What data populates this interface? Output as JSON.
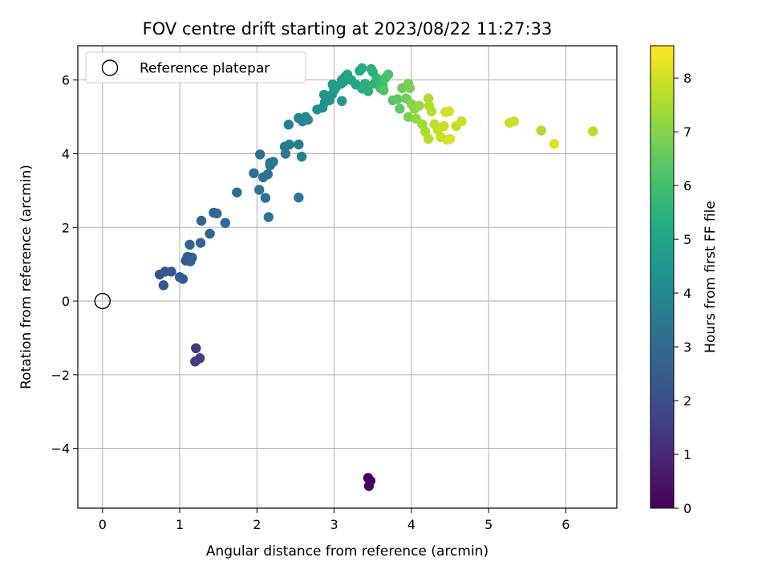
{
  "chart_data": {
    "type": "scatter",
    "title": "FOV centre drift starting at 2023/08/22 11:27:33",
    "xlabel": "Angular distance from reference (arcmin)",
    "ylabel": "Rotation from reference (arcmin)",
    "xlim": [
      -0.32,
      6.66
    ],
    "ylim": [
      -5.62,
      6.93
    ],
    "grid": true,
    "x_ticks": [
      0,
      1,
      2,
      3,
      4,
      5,
      6
    ],
    "y_ticks": [
      -4,
      -2,
      0,
      2,
      4,
      6
    ],
    "x_tick_labels": [
      "0",
      "1",
      "2",
      "3",
      "4",
      "5",
      "6"
    ],
    "y_tick_labels": [
      "−4",
      "−2",
      "0",
      "2",
      "4",
      "6"
    ],
    "legend": {
      "placement": "top-left",
      "entries": [
        {
          "label": "Reference platepar",
          "marker": "open-circle"
        }
      ]
    },
    "reference_point": {
      "x": 0,
      "y": 0
    },
    "colorbar": {
      "label": "Hours from first FF file",
      "colormap": "viridis",
      "range": [
        0,
        8.6
      ],
      "ticks": [
        0,
        1,
        2,
        3,
        4,
        5,
        6,
        7,
        8
      ],
      "tick_labels": [
        "0",
        "1",
        "2",
        "3",
        "4",
        "5",
        "6",
        "7",
        "8"
      ]
    },
    "series": [
      {
        "points": [
          {
            "x": 3.44,
            "y": -4.8,
            "c": 0.05
          },
          {
            "x": 3.47,
            "y": -4.88,
            "c": 0.1
          },
          {
            "x": 3.45,
            "y": -5.02,
            "c": 0.15
          },
          {
            "x": 1.21,
            "y": -1.28,
            "c": 1.45
          },
          {
            "x": 1.26,
            "y": -1.55,
            "c": 1.55
          },
          {
            "x": 1.2,
            "y": -1.64,
            "c": 1.5
          },
          {
            "x": 0.74,
            "y": 0.72,
            "c": 2.2
          },
          {
            "x": 0.81,
            "y": 0.8,
            "c": 2.25
          },
          {
            "x": 0.79,
            "y": 0.43,
            "c": 2.3
          },
          {
            "x": 0.89,
            "y": 0.8,
            "c": 2.35
          },
          {
            "x": 1.0,
            "y": 0.65,
            "c": 2.4
          },
          {
            "x": 1.04,
            "y": 0.6,
            "c": 2.45
          },
          {
            "x": 1.08,
            "y": 1.1,
            "c": 2.5
          },
          {
            "x": 1.1,
            "y": 1.2,
            "c": 2.55
          },
          {
            "x": 1.14,
            "y": 1.08,
            "c": 2.6
          },
          {
            "x": 1.16,
            "y": 1.18,
            "c": 2.6
          },
          {
            "x": 1.13,
            "y": 1.53,
            "c": 2.65
          },
          {
            "x": 1.27,
            "y": 1.58,
            "c": 2.7
          },
          {
            "x": 1.28,
            "y": 2.18,
            "c": 2.75
          },
          {
            "x": 1.39,
            "y": 1.83,
            "c": 2.8
          },
          {
            "x": 1.44,
            "y": 2.4,
            "c": 2.85
          },
          {
            "x": 1.48,
            "y": 2.38,
            "c": 2.9
          },
          {
            "x": 1.59,
            "y": 2.12,
            "c": 2.95
          },
          {
            "x": 1.74,
            "y": 2.95,
            "c": 3.0
          },
          {
            "x": 1.96,
            "y": 3.47,
            "c": 3.1
          },
          {
            "x": 2.03,
            "y": 3.02,
            "c": 3.15
          },
          {
            "x": 2.04,
            "y": 3.98,
            "c": 3.2
          },
          {
            "x": 2.08,
            "y": 3.36,
            "c": 3.2
          },
          {
            "x": 2.11,
            "y": 2.8,
            "c": 3.25
          },
          {
            "x": 2.15,
            "y": 2.28,
            "c": 3.3
          },
          {
            "x": 2.14,
            "y": 3.44,
            "c": 3.3
          },
          {
            "x": 2.17,
            "y": 3.68,
            "c": 3.35
          },
          {
            "x": 2.17,
            "y": 3.75,
            "c": 3.4
          },
          {
            "x": 2.21,
            "y": 3.78,
            "c": 3.4
          },
          {
            "x": 2.36,
            "y": 4.19,
            "c": 3.5
          },
          {
            "x": 2.37,
            "y": 4.0,
            "c": 3.55
          },
          {
            "x": 2.42,
            "y": 4.25,
            "c": 3.6
          },
          {
            "x": 2.54,
            "y": 4.25,
            "c": 3.65
          },
          {
            "x": 2.54,
            "y": 2.81,
            "c": 3.5
          },
          {
            "x": 2.58,
            "y": 3.92,
            "c": 3.7
          },
          {
            "x": 2.41,
            "y": 4.79,
            "c": 3.8
          },
          {
            "x": 2.54,
            "y": 4.97,
            "c": 3.9
          },
          {
            "x": 2.59,
            "y": 4.88,
            "c": 3.95
          },
          {
            "x": 2.63,
            "y": 5.0,
            "c": 4.0
          },
          {
            "x": 2.66,
            "y": 4.92,
            "c": 4.05
          },
          {
            "x": 2.78,
            "y": 5.2,
            "c": 4.2
          },
          {
            "x": 2.85,
            "y": 5.25,
            "c": 4.25
          },
          {
            "x": 2.88,
            "y": 5.4,
            "c": 4.3
          },
          {
            "x": 2.87,
            "y": 5.6,
            "c": 4.4
          },
          {
            "x": 2.94,
            "y": 5.45,
            "c": 4.45
          },
          {
            "x": 2.97,
            "y": 5.6,
            "c": 4.5
          },
          {
            "x": 3.0,
            "y": 5.73,
            "c": 4.6
          },
          {
            "x": 3.1,
            "y": 5.43,
            "c": 4.65
          },
          {
            "x": 2.98,
            "y": 5.88,
            "c": 4.7
          },
          {
            "x": 3.02,
            "y": 5.8,
            "c": 4.75
          },
          {
            "x": 3.09,
            "y": 5.9,
            "c": 4.8
          },
          {
            "x": 3.12,
            "y": 5.95,
            "c": 4.85
          },
          {
            "x": 3.1,
            "y": 6.0,
            "c": 4.9
          },
          {
            "x": 3.14,
            "y": 6.08,
            "c": 5.0
          },
          {
            "x": 3.17,
            "y": 6.15,
            "c": 5.05
          },
          {
            "x": 3.22,
            "y": 6.0,
            "c": 5.1
          },
          {
            "x": 3.28,
            "y": 5.88,
            "c": 5.15
          },
          {
            "x": 3.33,
            "y": 6.25,
            "c": 5.2
          },
          {
            "x": 3.36,
            "y": 6.32,
            "c": 5.25
          },
          {
            "x": 3.36,
            "y": 5.77,
            "c": 5.3
          },
          {
            "x": 3.4,
            "y": 5.9,
            "c": 5.35
          },
          {
            "x": 3.44,
            "y": 5.7,
            "c": 5.4
          },
          {
            "x": 3.48,
            "y": 6.3,
            "c": 5.45
          },
          {
            "x": 3.5,
            "y": 6.22,
            "c": 5.5
          },
          {
            "x": 3.52,
            "y": 5.9,
            "c": 5.55
          },
          {
            "x": 3.55,
            "y": 6.05,
            "c": 5.6
          },
          {
            "x": 3.58,
            "y": 5.95,
            "c": 5.7
          },
          {
            "x": 3.6,
            "y": 5.78,
            "c": 5.8
          },
          {
            "x": 3.63,
            "y": 5.85,
            "c": 5.9
          },
          {
            "x": 3.66,
            "y": 6.05,
            "c": 6.0
          },
          {
            "x": 3.7,
            "y": 6.15,
            "c": 6.1
          },
          {
            "x": 3.64,
            "y": 5.72,
            "c": 6.2
          },
          {
            "x": 3.76,
            "y": 5.45,
            "c": 6.3
          },
          {
            "x": 3.82,
            "y": 5.48,
            "c": 6.4
          },
          {
            "x": 3.85,
            "y": 5.22,
            "c": 6.5
          },
          {
            "x": 3.88,
            "y": 5.78,
            "c": 6.6
          },
          {
            "x": 3.93,
            "y": 5.5,
            "c": 6.7
          },
          {
            "x": 3.96,
            "y": 5.9,
            "c": 6.8
          },
          {
            "x": 3.98,
            "y": 5.78,
            "c": 6.85
          },
          {
            "x": 3.96,
            "y": 5.0,
            "c": 6.9
          },
          {
            "x": 4.0,
            "y": 5.35,
            "c": 7.0
          },
          {
            "x": 4.04,
            "y": 5.22,
            "c": 7.1
          },
          {
            "x": 4.06,
            "y": 4.95,
            "c": 7.2
          },
          {
            "x": 4.1,
            "y": 5.3,
            "c": 7.3
          },
          {
            "x": 4.14,
            "y": 4.8,
            "c": 7.4
          },
          {
            "x": 4.18,
            "y": 4.6,
            "c": 7.5
          },
          {
            "x": 4.22,
            "y": 5.5,
            "c": 7.55
          },
          {
            "x": 4.23,
            "y": 5.3,
            "c": 7.6
          },
          {
            "x": 4.26,
            "y": 5.15,
            "c": 7.65
          },
          {
            "x": 4.22,
            "y": 4.4,
            "c": 7.7
          },
          {
            "x": 4.3,
            "y": 4.8,
            "c": 7.75
          },
          {
            "x": 4.34,
            "y": 4.65,
            "c": 7.8
          },
          {
            "x": 4.38,
            "y": 4.45,
            "c": 7.85
          },
          {
            "x": 4.42,
            "y": 4.75,
            "c": 7.9
          },
          {
            "x": 4.46,
            "y": 4.38,
            "c": 7.95
          },
          {
            "x": 4.44,
            "y": 5.13,
            "c": 8.0
          },
          {
            "x": 4.49,
            "y": 5.15,
            "c": 8.05
          },
          {
            "x": 4.5,
            "y": 4.4,
            "c": 8.1
          },
          {
            "x": 4.58,
            "y": 4.75,
            "c": 7.8
          },
          {
            "x": 4.65,
            "y": 4.88,
            "c": 7.85
          },
          {
            "x": 5.27,
            "y": 4.84,
            "c": 7.9
          },
          {
            "x": 5.33,
            "y": 4.88,
            "c": 7.95
          },
          {
            "x": 5.68,
            "y": 4.63,
            "c": 7.6
          },
          {
            "x": 5.85,
            "y": 4.27,
            "c": 8.2
          },
          {
            "x": 6.35,
            "y": 4.61,
            "c": 7.7
          }
        ]
      }
    ]
  }
}
